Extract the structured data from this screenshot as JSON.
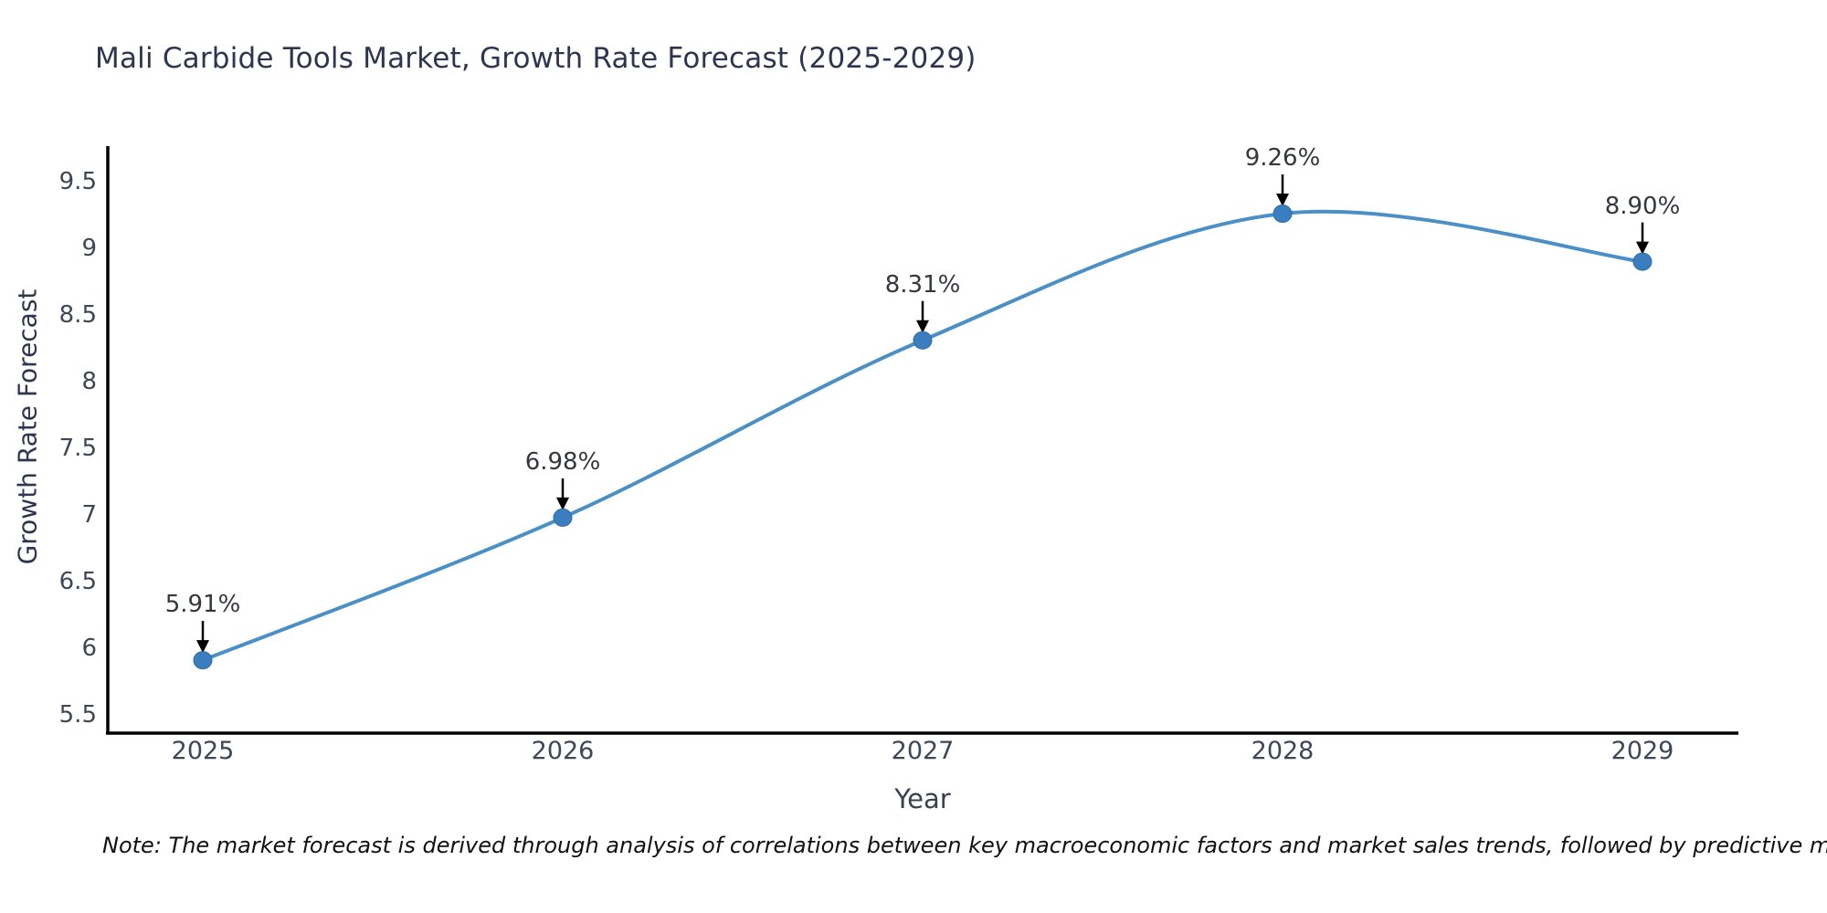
{
  "figure": {
    "background": "#ffffff",
    "note": "Note: The market forecast is derived through analysis of correlations between key macroeconomic factors and market sales trends, followed by predictive modeling to project future sales"
  },
  "chart_data": {
    "type": "line",
    "title": "Mali Carbide Tools Market, Growth Rate Forecast (2025-2029)",
    "xlabel": "Year",
    "ylabel": "Growth Rate Forecast",
    "x": [
      2025,
      2026,
      2027,
      2028,
      2029
    ],
    "x_tick_labels": [
      "2025",
      "2026",
      "2027",
      "2028",
      "2029"
    ],
    "values": [
      5.91,
      6.98,
      8.31,
      9.26,
      8.9
    ],
    "point_labels": [
      "5.91%",
      "6.98%",
      "8.31%",
      "9.26%",
      "8.90%"
    ],
    "y_tick_labels": [
      "9.5",
      "9",
      "8.5",
      "8",
      "7.5",
      "7",
      "6.5",
      "6",
      "5.5"
    ],
    "y_tick_values": [
      9.5,
      9,
      8.5,
      8,
      7.5,
      7,
      6.5,
      6,
      5.5
    ],
    "ylim": [
      5.36,
      9.78
    ],
    "xlim": [
      2024.74,
      2029.27
    ],
    "grid": false,
    "legend": null,
    "smooth": true,
    "line_color": "#4a8fc5",
    "marker_color": "#3a7ebf",
    "marker_edge_color": "#2f6ba8",
    "axis_color": "#000000",
    "title_color": "#2e3550",
    "tick_color": "#3e4755",
    "axis_title_color": "#39404f",
    "annotation_color": "#33383f",
    "annotation_arrow_color": "#000000",
    "note_color": "#111111"
  }
}
